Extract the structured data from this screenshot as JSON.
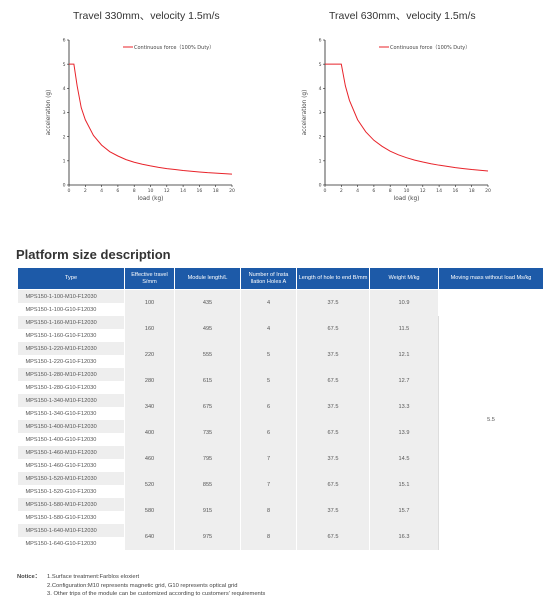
{
  "charts": [
    {
      "title": "Travel 330mm、velocity 1.5m/s",
      "legend": "Continuous force（100% Duty）",
      "ylabel": "acceleration (g)",
      "xlabel": "load (kg)"
    },
    {
      "title": "Travel 630mm、velocity 1.5m/s",
      "legend": "Continuous force（100% Duty）",
      "ylabel": "acceleration (g)",
      "xlabel": "load (kg)"
    }
  ],
  "chart_data": [
    {
      "type": "line",
      "title": "Travel 330mm、velocity 1.5m/s",
      "xlabel": "load (kg)",
      "ylabel": "acceleration (g)",
      "xlim": [
        0,
        20
      ],
      "ylim": [
        0,
        6
      ],
      "xticks": [
        "0",
        "2",
        "4",
        "6",
        "8",
        "10",
        "12",
        "14",
        "16",
        "18",
        "20"
      ],
      "yticks": [
        "0",
        "1",
        "2",
        "3",
        "4",
        "5",
        "6"
      ],
      "grid": false,
      "legend_position": "top-right",
      "series": [
        {
          "name": "Continuous force（100% Duty）",
          "x": [
            0,
            0.6,
            1,
            1.5,
            2,
            3,
            4,
            5,
            6,
            7,
            8,
            9,
            10,
            11,
            12,
            13,
            14,
            15,
            16,
            17,
            18,
            19,
            20
          ],
          "y": [
            5,
            5,
            4.1,
            3.2,
            2.7,
            2.05,
            1.65,
            1.38,
            1.2,
            1.05,
            0.94,
            0.86,
            0.79,
            0.73,
            0.68,
            0.64,
            0.6,
            0.57,
            0.54,
            0.51,
            0.49,
            0.47,
            0.45
          ]
        }
      ]
    },
    {
      "type": "line",
      "title": "Travel 630mm、velocity 1.5m/s",
      "xlabel": "load (kg)",
      "ylabel": "acceleration (g)",
      "xlim": [
        0,
        20
      ],
      "ylim": [
        0,
        6
      ],
      "xticks": [
        "0",
        "2",
        "4",
        "6",
        "8",
        "10",
        "12",
        "14",
        "16",
        "18",
        "20"
      ],
      "yticks": [
        "0",
        "1",
        "2",
        "3",
        "4",
        "5",
        "6"
      ],
      "grid": false,
      "legend_position": "top-right",
      "series": [
        {
          "name": "Continuous force（100% Duty）",
          "x": [
            0,
            2,
            2.5,
            3,
            4,
            5,
            6,
            7,
            8,
            9,
            10,
            11,
            12,
            13,
            14,
            15,
            16,
            17,
            18,
            19,
            20
          ],
          "y": [
            5,
            5,
            4.1,
            3.5,
            2.7,
            2.2,
            1.85,
            1.6,
            1.4,
            1.25,
            1.13,
            1.03,
            0.95,
            0.88,
            0.82,
            0.77,
            0.72,
            0.68,
            0.64,
            0.61,
            0.58
          ]
        }
      ]
    }
  ],
  "section_title": "Platform size description",
  "table": {
    "headers": [
      "Type",
      "Effective travel S/mm",
      "Module length/L",
      "Number of Insta llation Holes A",
      "Length of hole to end B/mm",
      "Weight M/kg",
      "Moving mass without load Ms/kg"
    ],
    "moving_mass": "5.5",
    "groups": [
      {
        "types": [
          "MPS150-1-100-M10-F12030",
          "MPS150-1-100-G10-F12030"
        ],
        "travel": "100",
        "length": "435",
        "holes": "4",
        "hole_end": "37.5",
        "weight": "10.9"
      },
      {
        "types": [
          "MPS150-1-160-M10-F12030",
          "MPS150-1-160-G10-F12030"
        ],
        "travel": "160",
        "length": "495",
        "holes": "4",
        "hole_end": "67.5",
        "weight": "11.5"
      },
      {
        "types": [
          "MPS150-1-220-M10-F12030",
          "MPS150-1-220-G10-F12030"
        ],
        "travel": "220",
        "length": "555",
        "holes": "5",
        "hole_end": "37.5",
        "weight": "12.1"
      },
      {
        "types": [
          "MPS150-1-280-M10-F12030",
          "MPS150-1-280-G10-F12030"
        ],
        "travel": "280",
        "length": "615",
        "holes": "5",
        "hole_end": "67.5",
        "weight": "12.7"
      },
      {
        "types": [
          "MPS150-1-340-M10-F12030",
          "MPS150-1-340-G10-F12030"
        ],
        "travel": "340",
        "length": "675",
        "holes": "6",
        "hole_end": "37.5",
        "weight": "13.3"
      },
      {
        "types": [
          "MPS150-1-400-M10-F12030",
          "MPS150-1-400-G10-F12030"
        ],
        "travel": "400",
        "length": "735",
        "holes": "6",
        "hole_end": "67.5",
        "weight": "13.9"
      },
      {
        "types": [
          "MPS150-1-460-M10-F12030",
          "MPS150-1-460-G10-F12030"
        ],
        "travel": "460",
        "length": "795",
        "holes": "7",
        "hole_end": "37.5",
        "weight": "14.5"
      },
      {
        "types": [
          "MPS150-1-520-M10-F12030",
          "MPS150-1-520-G10-F12030"
        ],
        "travel": "520",
        "length": "855",
        "holes": "7",
        "hole_end": "67.5",
        "weight": "15.1"
      },
      {
        "types": [
          "MPS150-1-580-M10-F12030",
          "MPS150-1-580-G10-F12030"
        ],
        "travel": "580",
        "length": "915",
        "holes": "8",
        "hole_end": "37.5",
        "weight": "15.7"
      },
      {
        "types": [
          "MPS150-1-640-M10-F12030",
          "MPS150-1-640-G10-F12030"
        ],
        "travel": "640",
        "length": "975",
        "holes": "8",
        "hole_end": "67.5",
        "weight": "16.3"
      }
    ]
  },
  "notice": {
    "label": "Notice：",
    "lines": [
      "1.Surface treatment:Farblos eloxiert",
      "2.Configuration:M10 represents magnetic grid, G10 represents optical grid",
      "3. Other trips of the module can be customized according to customers' requirements"
    ]
  },
  "colors": {
    "curve": "#e8232a",
    "axis": "#222222",
    "header_bg": "#1d5aa8",
    "row_alt": "#eeeeee"
  }
}
